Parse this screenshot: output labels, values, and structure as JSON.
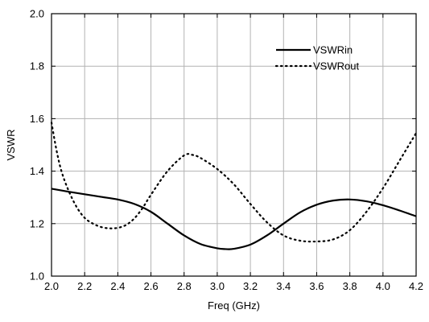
{
  "chart_data": {
    "type": "line",
    "title": "",
    "xlabel": "Freq (GHz)",
    "ylabel": "VSWR",
    "xlim": [
      2.0,
      4.2
    ],
    "ylim": [
      1.0,
      2.0
    ],
    "xticks": [
      "2.0",
      "2.2",
      "2.4",
      "2.6",
      "2.8",
      "3.0",
      "3.2",
      "3.4",
      "3.6",
      "3.8",
      "4.0",
      "4.2"
    ],
    "yticks": [
      "1.0",
      "1.2",
      "1.4",
      "1.6",
      "1.8",
      "2.0"
    ],
    "grid": true,
    "legend_position": "top-right",
    "series": [
      {
        "name": "VSWRin",
        "line_style": "solid",
        "color": "#000000",
        "points": [
          [
            2.0,
            1.333
          ],
          [
            2.1,
            1.322
          ],
          [
            2.2,
            1.312
          ],
          [
            2.3,
            1.302
          ],
          [
            2.4,
            1.292
          ],
          [
            2.5,
            1.275
          ],
          [
            2.6,
            1.245
          ],
          [
            2.7,
            1.2
          ],
          [
            2.8,
            1.155
          ],
          [
            2.9,
            1.122
          ],
          [
            3.0,
            1.106
          ],
          [
            3.05,
            1.103
          ],
          [
            3.1,
            1.104
          ],
          [
            3.2,
            1.12
          ],
          [
            3.3,
            1.155
          ],
          [
            3.4,
            1.2
          ],
          [
            3.5,
            1.243
          ],
          [
            3.6,
            1.272
          ],
          [
            3.7,
            1.288
          ],
          [
            3.8,
            1.292
          ],
          [
            3.9,
            1.285
          ],
          [
            4.0,
            1.27
          ],
          [
            4.1,
            1.25
          ],
          [
            4.2,
            1.228
          ]
        ]
      },
      {
        "name": "VSWRout",
        "line_style": "dotted",
        "color": "#000000",
        "points": [
          [
            2.0,
            1.585
          ],
          [
            2.03,
            1.48
          ],
          [
            2.06,
            1.4
          ],
          [
            2.1,
            1.33
          ],
          [
            2.15,
            1.265
          ],
          [
            2.2,
            1.222
          ],
          [
            2.25,
            1.2
          ],
          [
            2.3,
            1.187
          ],
          [
            2.35,
            1.182
          ],
          [
            2.4,
            1.184
          ],
          [
            2.45,
            1.195
          ],
          [
            2.5,
            1.22
          ],
          [
            2.55,
            1.26
          ],
          [
            2.6,
            1.31
          ],
          [
            2.7,
            1.4
          ],
          [
            2.8,
            1.46
          ],
          [
            2.85,
            1.462
          ],
          [
            2.9,
            1.45
          ],
          [
            3.0,
            1.408
          ],
          [
            3.1,
            1.35
          ],
          [
            3.2,
            1.275
          ],
          [
            3.3,
            1.205
          ],
          [
            3.4,
            1.155
          ],
          [
            3.5,
            1.135
          ],
          [
            3.6,
            1.132
          ],
          [
            3.7,
            1.14
          ],
          [
            3.8,
            1.175
          ],
          [
            3.9,
            1.245
          ],
          [
            4.0,
            1.335
          ],
          [
            4.1,
            1.44
          ],
          [
            4.2,
            1.545
          ]
        ]
      }
    ]
  }
}
